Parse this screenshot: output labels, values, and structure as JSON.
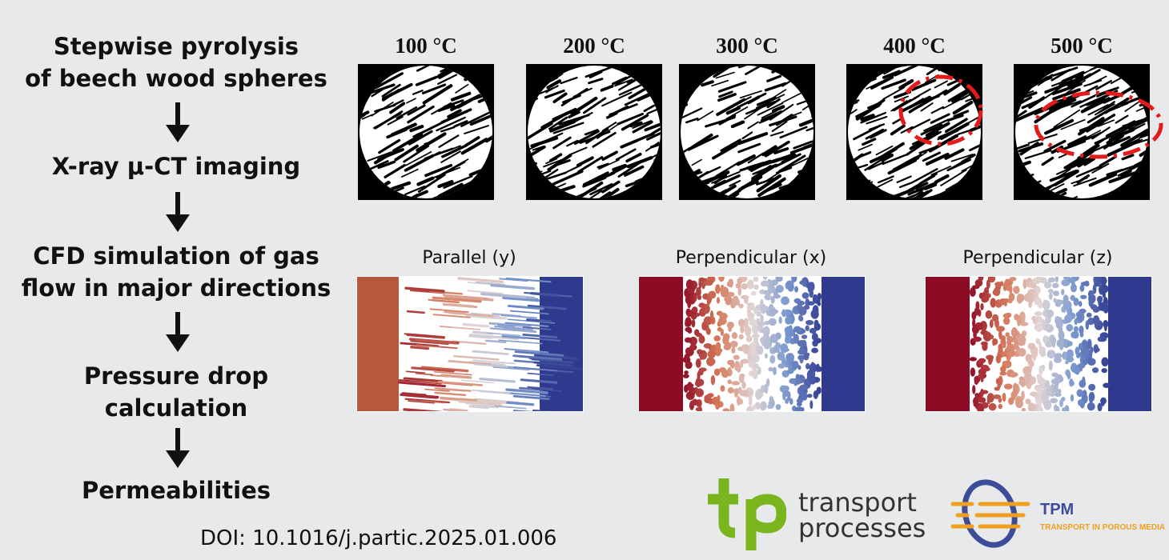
{
  "workflow": {
    "steps": [
      [
        "Stepwise pyrolysis",
        "of beech wood spheres"
      ],
      [
        "X-ray μ-CT imaging"
      ],
      [
        "CFD simulation of gas",
        "flow in major directions"
      ],
      [
        "Pressure drop",
        "calculation"
      ],
      [
        "Permeabilities"
      ]
    ]
  },
  "ct_images": {
    "temperatures": [
      "100 °C",
      "200 °C",
      "300 °C",
      "400 °C",
      "500 °C"
    ],
    "highlight_color": "#e31b1b"
  },
  "simulations": {
    "labels": [
      "Parallel (y)",
      "Perpendicular (x)",
      "Perpendicular (z)"
    ],
    "high_color": "#8e0b25",
    "low_color": "#2f3a8f"
  },
  "footer": {
    "doi": "DOI: 10.1016/j.partic.2025.01.006",
    "tp_logo_line1": "transport",
    "tp_logo_line2": "processes",
    "tpm_title": "TPM",
    "tpm_subtitle": "TRANSPORT IN POROUS MEDIA",
    "tp_color": "#7ab51d",
    "tpm_color": "#3d4c99"
  }
}
